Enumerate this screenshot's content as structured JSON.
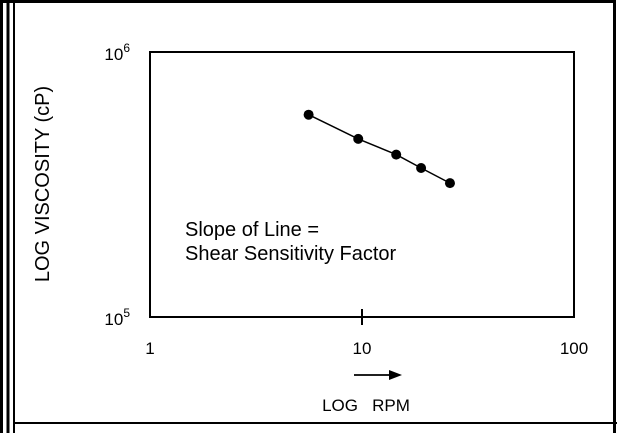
{
  "chart_data": {
    "type": "line",
    "xscale": "log",
    "yscale": "log",
    "xlim": [
      1,
      100
    ],
    "ylim": [
      100000,
      1000000
    ],
    "xlabel": "LOG   RPM",
    "ylabel": "LOG VISCOSITY (cP)",
    "x_ticks": [
      {
        "value": 1,
        "label": "1"
      },
      {
        "value": 10,
        "label": "10"
      },
      {
        "value": 100,
        "label": "100"
      }
    ],
    "y_ticks": [
      {
        "value": 100000,
        "base": "10",
        "exp": "5"
      },
      {
        "value": 1000000,
        "base": "10",
        "exp": "6"
      }
    ],
    "series": [
      {
        "x": [
          5.6,
          9.6,
          14.5,
          19.0,
          26.0
        ],
        "y": [
          580000,
          470000,
          410000,
          365000,
          320000
        ]
      }
    ],
    "annotation": {
      "lines": [
        "Slope of Line =",
        "Shear Sensitivity Factor"
      ]
    },
    "grid": false,
    "legend": "none"
  }
}
